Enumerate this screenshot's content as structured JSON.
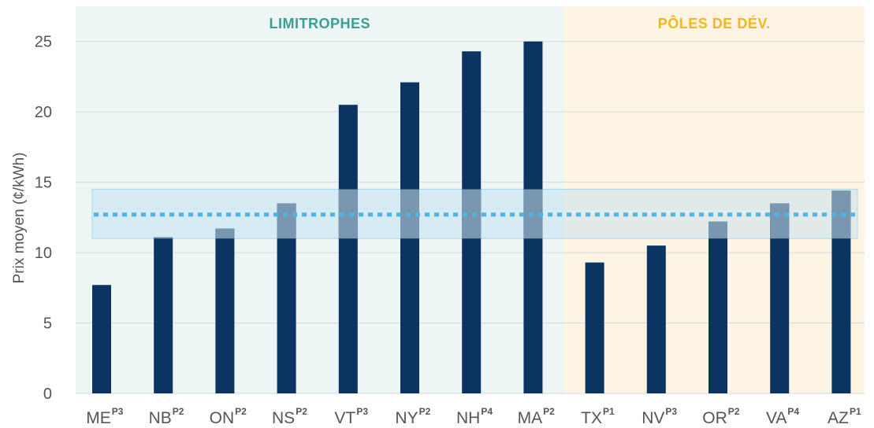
{
  "chart_data": {
    "type": "bar",
    "ylabel": "Prix moyen (¢/kWh)",
    "ylim": [
      0,
      27.5
    ],
    "yticks": [
      0,
      5,
      10,
      15,
      20,
      25
    ],
    "grid": true,
    "categories": [
      {
        "code": "ME",
        "sup": "P3"
      },
      {
        "code": "NB",
        "sup": "P2"
      },
      {
        "code": "ON",
        "sup": "P2"
      },
      {
        "code": "NS",
        "sup": "P2"
      },
      {
        "code": "VT",
        "sup": "P3"
      },
      {
        "code": "NY",
        "sup": "P2"
      },
      {
        "code": "NH",
        "sup": "P4"
      },
      {
        "code": "MA",
        "sup": "P2"
      },
      {
        "code": "TX",
        "sup": "P1"
      },
      {
        "code": "NV",
        "sup": "P3"
      },
      {
        "code": "OR",
        "sup": "P2"
      },
      {
        "code": "VA",
        "sup": "P4"
      },
      {
        "code": "AZ",
        "sup": "P1"
      }
    ],
    "values": [
      7.7,
      11.1,
      11.7,
      13.5,
      20.5,
      22.1,
      24.3,
      25.0,
      9.3,
      10.5,
      12.2,
      13.5,
      14.4
    ],
    "reference": {
      "line_value": 12.7,
      "band": [
        11.0,
        14.5
      ],
      "line_color": "#4fb3e6",
      "band_color": "#a9d8f2"
    },
    "regions": [
      {
        "title": "LIMITROPHES",
        "from": 0,
        "to": 7,
        "bg": "#eef6f5",
        "title_color": "#3a9e93"
      },
      {
        "title": "PÔLES DE DÉV.",
        "from": 8,
        "to": 12,
        "bg": "#fdf4e3",
        "title_color": "#f2b71c"
      }
    ],
    "bar_color": "#0b3463",
    "overlap_color": "#7a97b2"
  }
}
